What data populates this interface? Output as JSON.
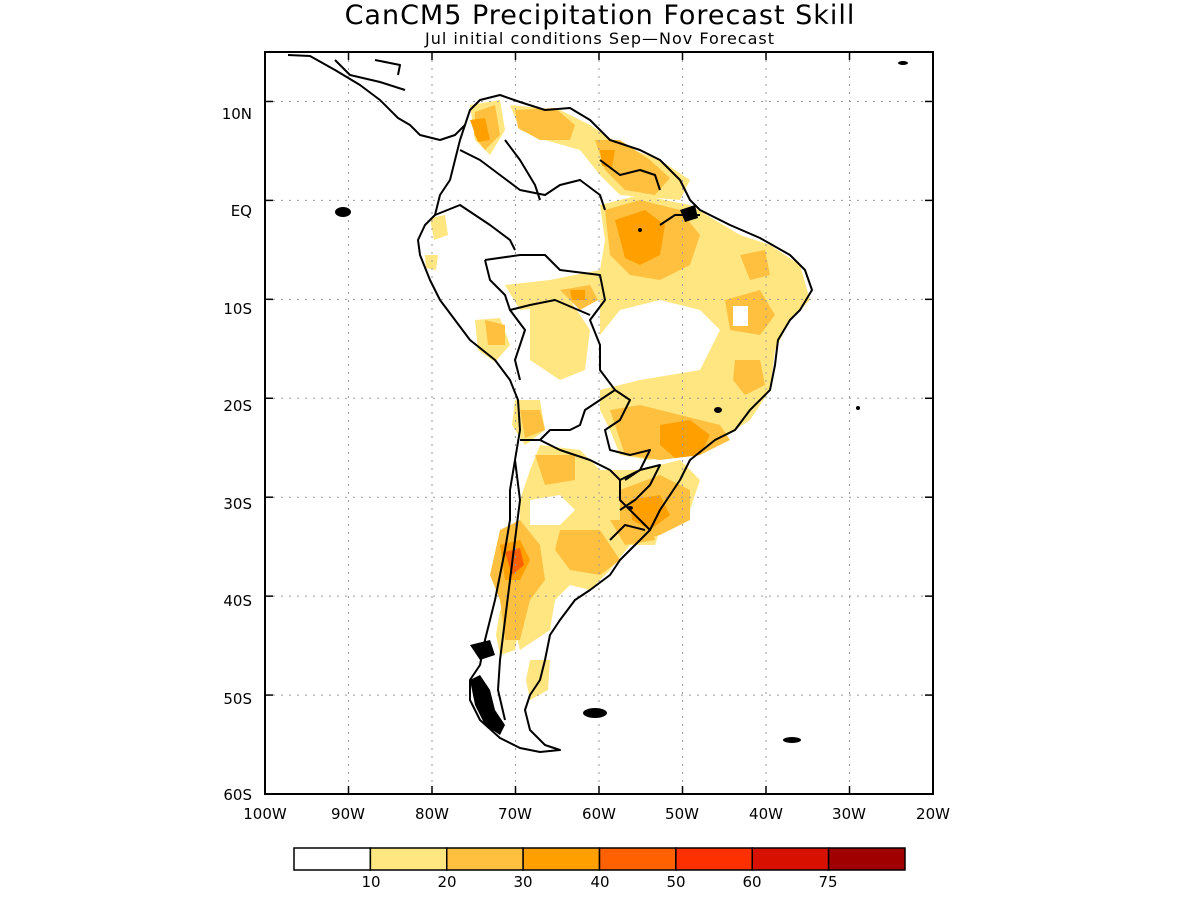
{
  "title": "CanCM5 Precipitation Forecast Skill",
  "subtitle": "Jul initial conditions   Sep—Nov Forecast",
  "chart_data": {
    "type": "heatmap",
    "map_region": "South America",
    "lon_range": [
      -100,
      -20
    ],
    "lat_range": [
      -60,
      15
    ],
    "x_ticks": [
      "100W",
      "90W",
      "80W",
      "70W",
      "60W",
      "50W",
      "40W",
      "30W",
      "20W"
    ],
    "y_ticks": [
      "10N",
      "EQ",
      "10S",
      "20S",
      "30S",
      "40S",
      "50S",
      "60S"
    ],
    "grid": true,
    "colorbar": {
      "levels": [
        "10",
        "20",
        "30",
        "40",
        "50",
        "60",
        "75"
      ],
      "colors": [
        "#ffffff",
        "#ffe680",
        "#ffc040",
        "#ffa000",
        "#ff6000",
        "#ff3000",
        "#d81000",
        "#a00000"
      ]
    }
  }
}
